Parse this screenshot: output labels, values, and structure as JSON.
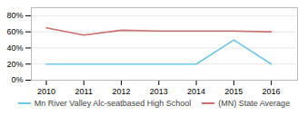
{
  "chart_data": {
    "type": "line",
    "x": [
      2010,
      2011,
      2012,
      2013,
      2014,
      2015,
      2016
    ],
    "series": [
      {
        "name": "Mn River Valley Alc-seatbased High School",
        "color": "#6ec6e8",
        "values": [
          0.2,
          0.2,
          0.2,
          0.2,
          0.2,
          0.5,
          0.2
        ]
      },
      {
        "name": "(MN) State Average",
        "color": "#c97070",
        "values": [
          0.65,
          0.56,
          0.62,
          0.61,
          0.61,
          0.61,
          0.6
        ]
      }
    ],
    "xlim": [
      2009.6,
      2016.7
    ],
    "xticks": [
      2010,
      2011,
      2012,
      2013,
      2014,
      2015,
      2016
    ],
    "ylim": [
      0,
      0.9
    ],
    "yticks": [
      {
        "value": 0.0,
        "label": "0%"
      },
      {
        "value": 0.2,
        "label": "20%"
      },
      {
        "value": 0.4,
        "label": "40%"
      },
      {
        "value": 0.6,
        "label": "60%"
      },
      {
        "value": 0.8,
        "label": "80%"
      }
    ],
    "grid": true,
    "legend": "bottom"
  }
}
